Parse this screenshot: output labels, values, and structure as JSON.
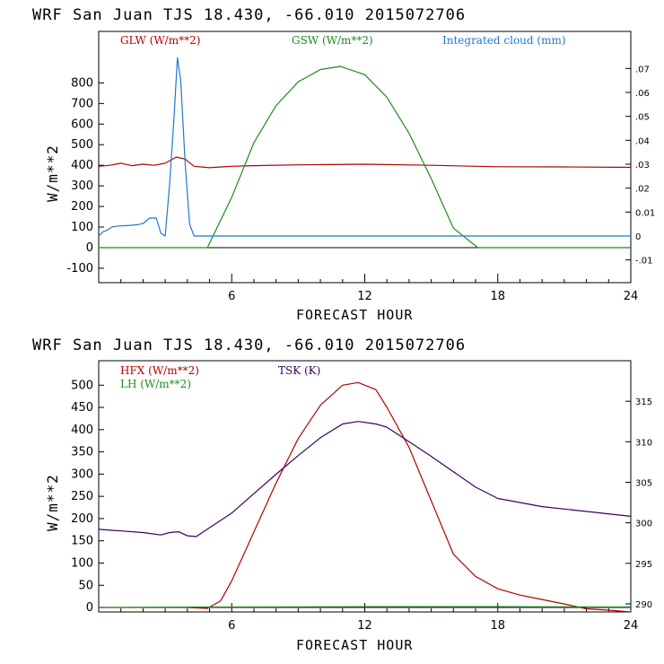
{
  "colors": {
    "red": "#b30000",
    "green": "#1f8a1f",
    "blue": "#1f78d0",
    "purple": "#3a0060",
    "axis": "#000000"
  },
  "chart_data": [
    {
      "type": "line",
      "title": "WRF   San Juan TJS  18.430, -66.010  2015072706",
      "xlabel": "FORECAST HOUR",
      "ylabel": "W/m**2",
      "xlim": [
        0,
        24
      ],
      "ylim": [
        -170,
        1050
      ],
      "y2lim": [
        -0.0195,
        0.0855
      ],
      "xticks": [
        "6",
        "12",
        "18",
        "24"
      ],
      "yticks": [
        "-100",
        "0",
        "100",
        "200",
        "300",
        "400",
        "500",
        "600",
        "700",
        "800"
      ],
      "y2ticks": [
        "-.01",
        "0",
        "0.01",
        ".02",
        ".03",
        ".04",
        ".05",
        ".06",
        ".07"
      ],
      "legend": [
        {
          "label": "GLW (W/m**2)",
          "color": "#b30000"
        },
        {
          "label": "GSW (W/m**2)",
          "color": "#1f8a1f"
        },
        {
          "label": "Integrated cloud (mm)",
          "color": "#1f78d0"
        }
      ],
      "series": [
        {
          "name": "GLW (W/m**2)",
          "axis": "left",
          "color": "#b30000",
          "x": [
            0,
            0.5,
            1.0,
            1.5,
            2.0,
            2.5,
            3.0,
            3.5,
            3.9,
            4.3,
            5.0,
            6.0,
            7.0,
            9.0,
            12.0,
            15.0,
            18.0,
            21.0,
            24.0
          ],
          "y": [
            395,
            400,
            410,
            398,
            405,
            400,
            410,
            440,
            430,
            395,
            388,
            395,
            398,
            402,
            405,
            400,
            393,
            392,
            390
          ]
        },
        {
          "name": "GSW (W/m**2)",
          "axis": "left",
          "color": "#1f8a1f",
          "x": [
            0,
            4.9,
            6,
            7,
            8,
            9,
            10,
            10.9,
            12,
            13,
            14,
            15,
            16,
            17.1,
            24
          ],
          "y": [
            0,
            0,
            245,
            510,
            690,
            805,
            865,
            880,
            840,
            730,
            555,
            335,
            95,
            0,
            0
          ]
        },
        {
          "name": "Integrated cloud (mm)",
          "axis": "right",
          "color": "#1f78d0",
          "x": [
            0,
            0.2,
            0.4,
            0.6,
            0.9,
            1.2,
            1.5,
            1.8,
            2.0,
            2.3,
            2.6,
            2.8,
            3.0,
            3.2,
            3.4,
            3.55,
            3.7,
            3.9,
            4.1,
            4.3,
            4.6,
            24
          ],
          "y": [
            0.0,
            0.0018,
            0.0025,
            0.0038,
            0.0042,
            0.0043,
            0.0045,
            0.0048,
            0.0052,
            0.0075,
            0.0075,
            0.0012,
            0.0,
            0.022,
            0.05,
            0.0745,
            0.065,
            0.03,
            0.005,
            0.0,
            0.0,
            0.0
          ]
        }
      ]
    },
    {
      "type": "line",
      "title": "WRF   San Juan TJS  18.430, -66.010  2015072706",
      "xlabel": "FORECAST HOUR",
      "ylabel": "W/m**2",
      "xlim": [
        0,
        24
      ],
      "ylim": [
        -10,
        555
      ],
      "y2lim": [
        289.0,
        320.0
      ],
      "xticks": [
        "6",
        "12",
        "18",
        "24"
      ],
      "yticks": [
        "0",
        "50",
        "100",
        "150",
        "200",
        "250",
        "300",
        "350",
        "400",
        "450",
        "500"
      ],
      "y2ticks": [
        "290",
        "295",
        "300",
        "305",
        "310",
        "315"
      ],
      "legend": [
        {
          "label": "HFX (W/m**2)",
          "color": "#b30000"
        },
        {
          "label": "LH  (W/m**2)",
          "color": "#1f8a1f"
        },
        {
          "label": "TSK (K)",
          "color": "#3a0060"
        }
      ],
      "series": [
        {
          "name": "HFX (W/m**2)",
          "axis": "left",
          "color": "#b30000",
          "x": [
            0,
            2,
            4,
            4.9,
            5.5,
            6,
            7,
            8,
            9,
            10,
            11,
            11.7,
            12.5,
            13,
            14,
            15,
            16,
            17,
            18,
            19,
            20,
            21,
            22,
            23,
            24
          ],
          "y": [
            0,
            0,
            0,
            -2,
            15,
            60,
            170,
            280,
            380,
            455,
            500,
            506,
            490,
            450,
            360,
            240,
            120,
            70,
            42,
            28,
            18,
            8,
            -3,
            -6,
            -10
          ]
        },
        {
          "name": "LH  (W/m**2)",
          "axis": "left",
          "color": "#1f8a1f",
          "x": [
            0,
            5,
            6,
            12,
            18,
            24
          ],
          "y": [
            0,
            1,
            1,
            2,
            2,
            1
          ]
        },
        {
          "name": "TSK (K)",
          "axis": "right",
          "color": "#3a0060",
          "x": [
            0,
            1.0,
            2.0,
            2.8,
            3.2,
            3.6,
            4.0,
            4.4,
            5.0,
            6.0,
            7.0,
            8.0,
            9.0,
            10.0,
            11.0,
            11.7,
            12.5,
            13.0,
            14.0,
            15.0,
            16.0,
            17.0,
            18.0,
            20.0,
            22.0,
            24.0
          ],
          "y": [
            299.2,
            299.0,
            298.8,
            298.5,
            298.8,
            298.9,
            298.4,
            298.3,
            299.4,
            301.2,
            303.6,
            306.0,
            308.3,
            310.5,
            312.2,
            312.5,
            312.2,
            311.8,
            310.0,
            308.2,
            306.3,
            304.4,
            303.0,
            302.0,
            301.4,
            300.8
          ]
        }
      ]
    }
  ]
}
